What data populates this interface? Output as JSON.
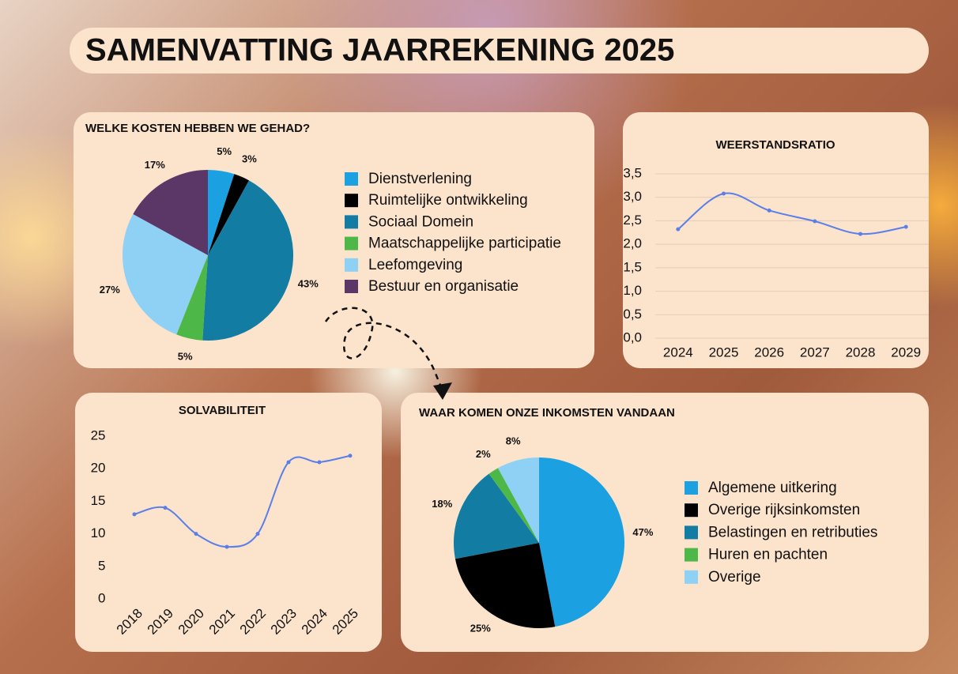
{
  "title": "SAMENVATTING JAARREKENING 2025",
  "chart_data": [
    {
      "type": "pie",
      "title": "WELKE KOSTEN HEBBEN WE GEHAD?",
      "categories": [
        "Dienstverlening",
        "Ruimtelijke ontwikkeling",
        "Sociaal Domein",
        "Maatschappelijke participatie",
        "Leefomgeving",
        "Bestuur en organisatie"
      ],
      "values": [
        5,
        3,
        43,
        5,
        27,
        17
      ],
      "value_labels": [
        "5%",
        "3%",
        "43%",
        "5%",
        "27%",
        "17%"
      ],
      "colors": [
        "#1ba1e2",
        "#000000",
        "#137ca3",
        "#4db848",
        "#8fd0f5",
        "#5b3768"
      ]
    },
    {
      "type": "line",
      "title": "WEERSTANDSRATIO",
      "categories": [
        "2024",
        "2025",
        "2026",
        "2027",
        "2028",
        "2029"
      ],
      "values": [
        2.32,
        3.08,
        2.72,
        2.49,
        2.22,
        2.37
      ],
      "color": "#5b7fe8",
      "ylim": [
        0,
        3.5
      ],
      "yticks": [
        {
          "value": 0,
          "label": "0,0"
        },
        {
          "value": 0.5,
          "label": "0,5"
        },
        {
          "value": 1,
          "label": "1,0"
        },
        {
          "value": 1.5,
          "label": "1,5"
        },
        {
          "value": 2,
          "label": "2,0"
        },
        {
          "value": 2.5,
          "label": "2,5"
        },
        {
          "value": 3,
          "label": "3,0"
        },
        {
          "value": 3.5,
          "label": "3,5"
        }
      ],
      "grid": true
    },
    {
      "type": "line",
      "title": "SOLVABILITEIT",
      "categories": [
        "2018",
        "2019",
        "2020",
        "2021",
        "2022",
        "2023",
        "2024",
        "2025"
      ],
      "values": [
        13,
        14,
        10,
        8,
        10,
        21,
        21,
        22
      ],
      "color": "#5b7fe8",
      "ylim": [
        0,
        25
      ],
      "yticks": [
        0,
        5,
        10,
        15,
        20,
        25
      ],
      "grid": false
    },
    {
      "type": "pie",
      "title": "WAAR KOMEN ONZE INKOMSTEN VANDAAN",
      "categories": [
        "Algemene uitkering",
        "Overige rijksinkomsten",
        "Belastingen en retributies",
        "Huren en pachten",
        "Overige"
      ],
      "values": [
        47,
        25,
        18,
        2,
        8
      ],
      "value_labels": [
        "47%",
        "25%",
        "18%",
        "2%",
        "8%"
      ],
      "colors": [
        "#1ba1e2",
        "#000000",
        "#137ca3",
        "#4db848",
        "#8fd0f5"
      ]
    }
  ]
}
